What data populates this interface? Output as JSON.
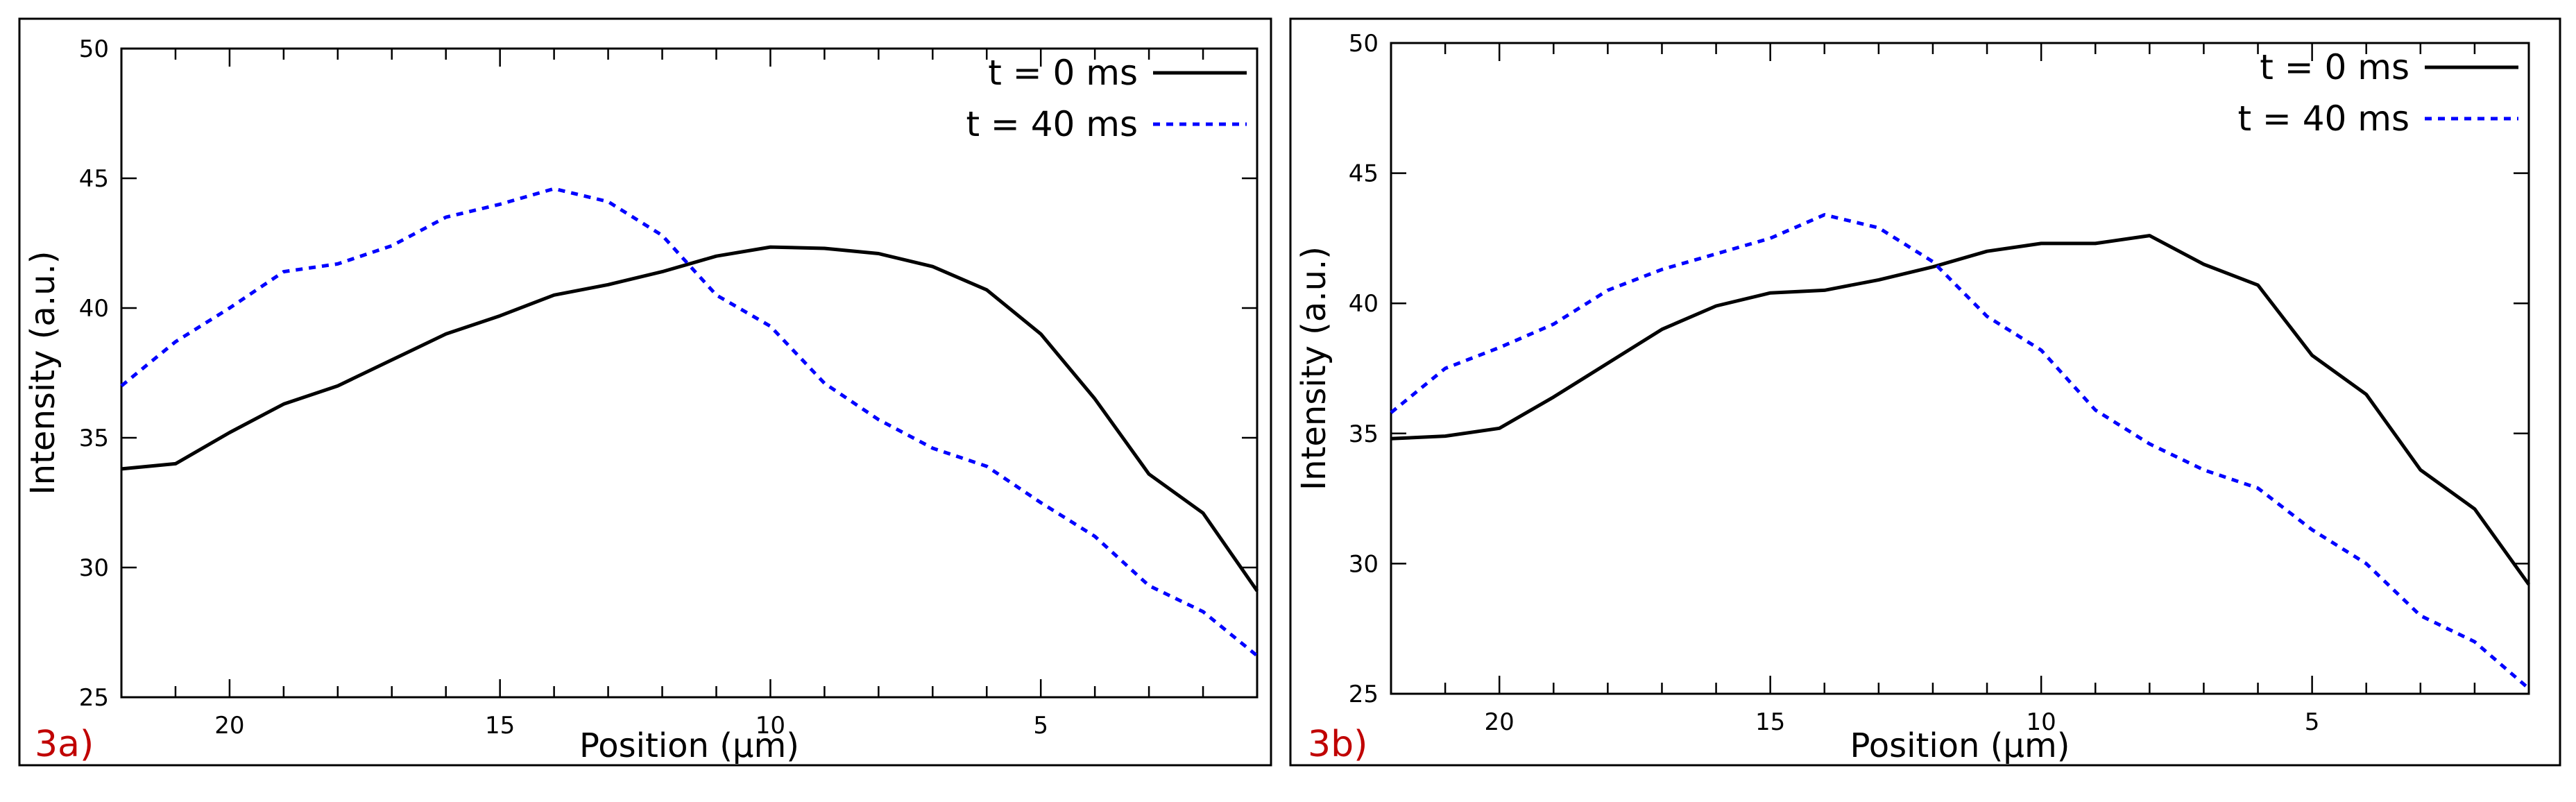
{
  "panels_common": {
    "colors": {
      "series0": "#000000",
      "series1": "#0000ff",
      "panel_label": "#c00000",
      "frame": "#000000"
    }
  },
  "chart_data": [
    {
      "type": "line",
      "panel_label": "3a)",
      "title": "",
      "xlabel": "Position (µm)",
      "ylabel": "Intensity (a.u.)",
      "xlim": [
        22,
        1
      ],
      "ylim": [
        25,
        50
      ],
      "x_inverted": true,
      "xticks": [
        20,
        15,
        10,
        5
      ],
      "yticks": [
        25,
        30,
        35,
        40,
        45,
        50
      ],
      "legend_position": "top-right",
      "grid": false,
      "series": [
        {
          "name": "t = 0 ms",
          "style": "solid",
          "color": "#000000",
          "x": [
            22,
            21,
            20,
            19,
            18,
            17,
            16,
            15,
            14,
            13,
            12,
            11,
            10,
            9,
            8,
            7,
            6,
            5,
            4,
            3,
            2,
            1
          ],
          "y": [
            33.8,
            34.0,
            35.2,
            36.3,
            37.0,
            38.0,
            39.0,
            39.7,
            40.5,
            40.9,
            41.4,
            42.0,
            42.35,
            42.3,
            42.1,
            41.6,
            40.7,
            39.0,
            36.5,
            33.6,
            32.1,
            29.1
          ]
        },
        {
          "name": "t = 40 ms",
          "style": "dashed",
          "color": "#0000ff",
          "x": [
            22,
            21,
            20,
            19,
            18,
            17,
            16,
            15,
            14,
            13,
            12,
            11,
            10,
            9,
            8,
            7,
            6,
            5,
            4,
            3,
            2,
            1
          ],
          "y": [
            37.0,
            38.7,
            40.0,
            41.4,
            41.7,
            42.4,
            43.5,
            44.0,
            44.6,
            44.1,
            42.8,
            40.5,
            39.3,
            37.1,
            35.7,
            34.6,
            33.9,
            32.5,
            31.2,
            29.3,
            28.3,
            26.6
          ]
        }
      ]
    },
    {
      "type": "line",
      "panel_label": "3b)",
      "title": "",
      "xlabel": "Position (µm)",
      "ylabel": "Intensity (a.u.)",
      "xlim": [
        22,
        1
      ],
      "ylim": [
        25,
        50
      ],
      "x_inverted": true,
      "xticks": [
        20,
        15,
        10,
        5
      ],
      "yticks": [
        25,
        30,
        35,
        40,
        45,
        50
      ],
      "legend_position": "top-right",
      "grid": false,
      "series": [
        {
          "name": "t = 0 ms",
          "style": "solid",
          "color": "#000000",
          "x": [
            22,
            21,
            20,
            19,
            18,
            17,
            16,
            15,
            14,
            13,
            12,
            11,
            10,
            9,
            8,
            7,
            6,
            5,
            4,
            3,
            2,
            1
          ],
          "y": [
            34.8,
            34.9,
            35.2,
            36.4,
            37.7,
            39.0,
            39.9,
            40.4,
            40.5,
            40.9,
            41.4,
            42.0,
            42.3,
            42.3,
            42.6,
            41.5,
            40.7,
            38.0,
            36.5,
            33.6,
            32.1,
            29.2
          ]
        },
        {
          "name": "t = 40 ms",
          "style": "dashed",
          "color": "#0000ff",
          "x": [
            22,
            21,
            20,
            19,
            18,
            17,
            16,
            15,
            14,
            13,
            12,
            11,
            10,
            9,
            8,
            7,
            6,
            5,
            4,
            3,
            2,
            1
          ],
          "y": [
            35.8,
            37.5,
            38.3,
            39.2,
            40.5,
            41.3,
            41.9,
            42.5,
            43.4,
            42.9,
            41.6,
            39.5,
            38.2,
            35.9,
            34.6,
            33.6,
            32.9,
            31.3,
            30.0,
            28.0,
            27.0,
            25.2
          ]
        }
      ]
    }
  ]
}
